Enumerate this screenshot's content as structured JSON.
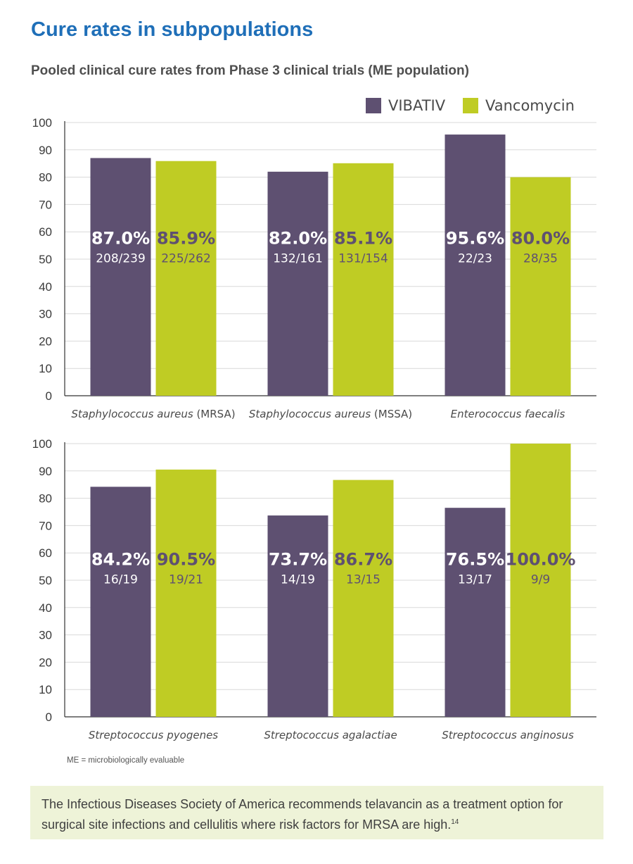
{
  "header": {
    "title": "Cure rates in subpopulations",
    "subtitle": "Pooled clinical cure rates from Phase 3 clinical trials (ME population)"
  },
  "legend": [
    {
      "label": "VIBATIV",
      "color": "#5e5071"
    },
    {
      "label": "Vancomycin",
      "color": "#bfcc24"
    }
  ],
  "colors": {
    "vibativ_pct_text": "#ffffff",
    "vibativ_frac_text": "#ffffff",
    "vanco_pct_text": "#5e5071",
    "vanco_frac_text": "#5e5071",
    "grid": "#d9d9d9",
    "axis": "#333333"
  },
  "chart_data": [
    {
      "type": "bar",
      "ylim": [
        0,
        100
      ],
      "yticks": [
        0,
        10,
        20,
        30,
        40,
        50,
        60,
        70,
        80,
        90,
        100
      ],
      "grid": true,
      "legend_position": "top-right",
      "categories": [
        {
          "name": "Staphylococcus aureus",
          "suffix": " (MRSA)"
        },
        {
          "name": "Staphylococcus aureus",
          "suffix": " (MSSA)"
        },
        {
          "name": "Enterococcus faecalis",
          "suffix": ""
        }
      ],
      "series": [
        {
          "name": "VIBATIV",
          "values": [
            87.0,
            82.0,
            95.6
          ],
          "labels": [
            "87.0%",
            "82.0%",
            "95.6%"
          ],
          "fractions": [
            "208/239",
            "132/161",
            "22/23"
          ]
        },
        {
          "name": "Vancomycin",
          "values": [
            85.9,
            85.1,
            80.0
          ],
          "labels": [
            "85.9%",
            "85.1%",
            "80.0%"
          ],
          "fractions": [
            "225/262",
            "131/154",
            "28/35"
          ]
        }
      ]
    },
    {
      "type": "bar",
      "ylim": [
        0,
        100
      ],
      "yticks": [
        0,
        10,
        20,
        30,
        40,
        50,
        60,
        70,
        80,
        90,
        100
      ],
      "grid": true,
      "categories": [
        {
          "name": "Streptococcus pyogenes",
          "suffix": ""
        },
        {
          "name": "Streptococcus agalactiae",
          "suffix": ""
        },
        {
          "name": "Streptococcus anginosus",
          "suffix": ""
        }
      ],
      "series": [
        {
          "name": "VIBATIV",
          "values": [
            84.2,
            73.7,
            76.5
          ],
          "labels": [
            "84.2%",
            "73.7%",
            "76.5%"
          ],
          "fractions": [
            "16/19",
            "14/19",
            "13/17"
          ]
        },
        {
          "name": "Vancomycin",
          "values": [
            90.5,
            86.7,
            100.0
          ],
          "labels": [
            "90.5%",
            "86.7%",
            "100.0%"
          ],
          "fractions": [
            "19/21",
            "13/15",
            "9/9"
          ]
        }
      ]
    }
  ],
  "footnote": "ME = microbiologically evaluable",
  "callout": {
    "text": "The Infectious Diseases Society of America recommends telavancin as a treatment option for surgical site infections and cellulitis where risk factors for MRSA are high.",
    "ref": "14"
  }
}
